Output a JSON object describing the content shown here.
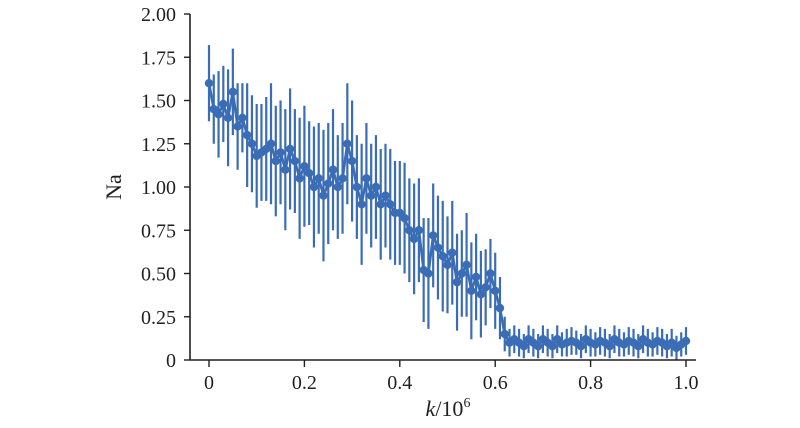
{
  "chart_data": {
    "type": "scatter",
    "title": "",
    "xlabel_var": "k",
    "xlabel_rest": "/10",
    "xlabel_exp": "6",
    "ylabel": "Na",
    "xlim": [
      0,
      1.0
    ],
    "ylim": [
      0,
      2.0
    ],
    "x_ticks": [
      "0",
      "0.2",
      "0.4",
      "0.6",
      "0.8",
      "1.0"
    ],
    "y_ticks": [
      "0",
      "0.25",
      "0.50",
      "0.75",
      "1.00",
      "1.25",
      "1.50",
      "1.75",
      "2.00"
    ],
    "grid": false,
    "color": "#3a6db5",
    "series": [
      {
        "error_bars": true,
        "x": [
          0.0,
          0.01,
          0.02,
          0.03,
          0.04,
          0.05,
          0.06,
          0.07,
          0.08,
          0.09,
          0.1,
          0.11,
          0.12,
          0.13,
          0.14,
          0.15,
          0.16,
          0.17,
          0.18,
          0.19,
          0.2,
          0.21,
          0.22,
          0.23,
          0.24,
          0.25,
          0.26,
          0.27,
          0.28,
          0.29,
          0.3,
          0.31,
          0.32,
          0.33,
          0.34,
          0.35,
          0.36,
          0.37,
          0.38,
          0.39,
          0.4,
          0.41,
          0.42,
          0.43,
          0.44,
          0.45,
          0.46,
          0.47,
          0.48,
          0.49,
          0.5,
          0.51,
          0.52,
          0.53,
          0.54,
          0.55,
          0.56,
          0.57,
          0.58,
          0.59,
          0.6,
          0.61,
          0.62,
          0.63,
          0.64,
          0.65,
          0.66,
          0.67,
          0.68,
          0.69,
          0.7,
          0.71,
          0.72,
          0.73,
          0.74,
          0.75,
          0.76,
          0.77,
          0.78,
          0.79,
          0.8,
          0.81,
          0.82,
          0.83,
          0.84,
          0.85,
          0.86,
          0.87,
          0.88,
          0.89,
          0.9,
          0.91,
          0.92,
          0.93,
          0.94,
          0.95,
          0.96,
          0.97,
          0.98,
          0.99,
          1.0
        ],
        "y": [
          1.6,
          1.45,
          1.42,
          1.48,
          1.4,
          1.55,
          1.35,
          1.4,
          1.3,
          1.25,
          1.18,
          1.2,
          1.22,
          1.25,
          1.15,
          1.2,
          1.1,
          1.22,
          1.15,
          1.05,
          1.12,
          1.08,
          1.0,
          1.05,
          0.95,
          1.02,
          1.1,
          1.0,
          1.05,
          1.25,
          1.15,
          1.0,
          0.9,
          1.05,
          0.95,
          1.0,
          0.9,
          0.95,
          0.9,
          0.85,
          0.85,
          0.82,
          0.75,
          0.7,
          0.75,
          0.52,
          0.5,
          0.72,
          0.65,
          0.6,
          0.55,
          0.62,
          0.45,
          0.5,
          0.55,
          0.4,
          0.48,
          0.38,
          0.42,
          0.5,
          0.4,
          0.3,
          0.15,
          0.1,
          0.12,
          0.1,
          0.08,
          0.12,
          0.1,
          0.08,
          0.12,
          0.1,
          0.08,
          0.12,
          0.09,
          0.1,
          0.11,
          0.1,
          0.08,
          0.12,
          0.1,
          0.09,
          0.11,
          0.1,
          0.08,
          0.12,
          0.1,
          0.09,
          0.11,
          0.1,
          0.08,
          0.12,
          0.1,
          0.09,
          0.11,
          0.1,
          0.08,
          0.1,
          0.07,
          0.09,
          0.11
        ],
        "err": [
          0.22,
          0.2,
          0.25,
          0.22,
          0.28,
          0.25,
          0.25,
          0.2,
          0.3,
          0.28,
          0.3,
          0.28,
          0.3,
          0.35,
          0.32,
          0.3,
          0.35,
          0.35,
          0.3,
          0.35,
          0.35,
          0.3,
          0.35,
          0.32,
          0.38,
          0.35,
          0.35,
          0.3,
          0.32,
          0.35,
          0.35,
          0.3,
          0.35,
          0.32,
          0.3,
          0.3,
          0.32,
          0.3,
          0.32,
          0.3,
          0.3,
          0.32,
          0.3,
          0.32,
          0.3,
          0.3,
          0.32,
          0.3,
          0.3,
          0.32,
          0.28,
          0.3,
          0.28,
          0.25,
          0.3,
          0.28,
          0.25,
          0.25,
          0.22,
          0.2,
          0.22,
          0.18,
          0.1,
          0.08,
          0.08,
          0.08,
          0.07,
          0.08,
          0.08,
          0.07,
          0.08,
          0.08,
          0.07,
          0.08,
          0.07,
          0.08,
          0.08,
          0.07,
          0.07,
          0.08,
          0.08,
          0.07,
          0.08,
          0.08,
          0.07,
          0.08,
          0.08,
          0.07,
          0.08,
          0.08,
          0.07,
          0.08,
          0.08,
          0.07,
          0.08,
          0.08,
          0.07,
          0.08,
          0.07,
          0.07,
          0.08
        ]
      }
    ]
  }
}
